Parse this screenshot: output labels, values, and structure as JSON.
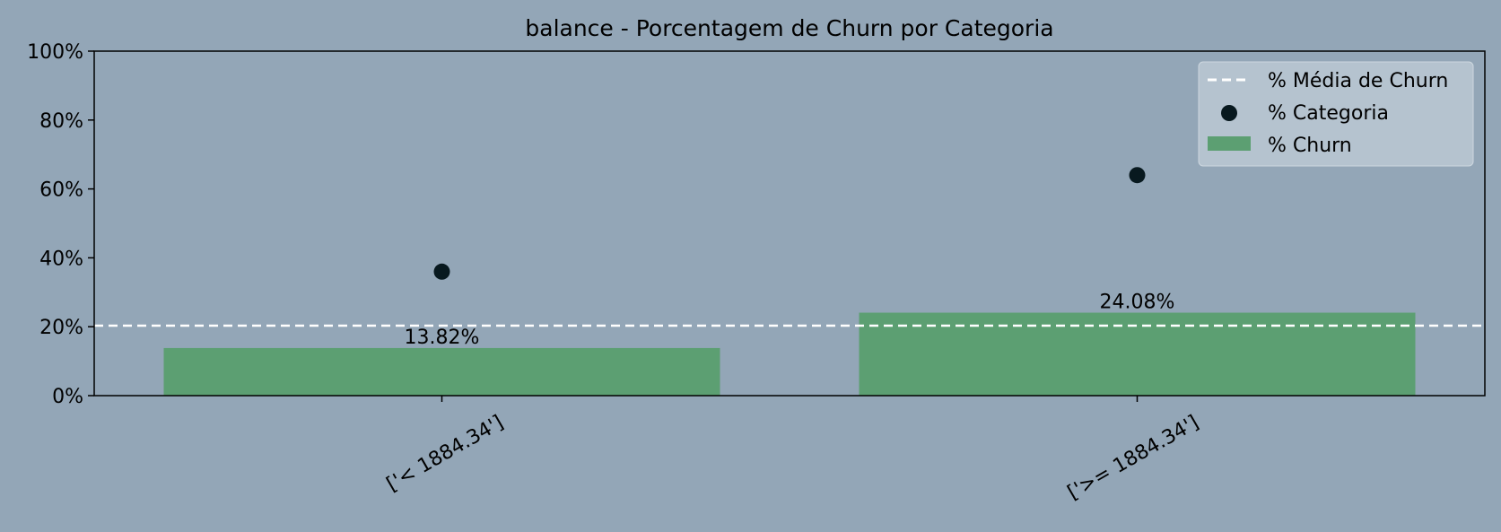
{
  "chart_data": {
    "type": "bar",
    "title": "balance - Porcentagem de Churn por Categoria",
    "categories": [
      "['< 1884.34']",
      "['>= 1884.34']"
    ],
    "series": [
      {
        "name": "% Churn",
        "values": [
          13.82,
          24.08
        ],
        "color": "#5c9f72"
      },
      {
        "name": "% Categoria",
        "values": [
          36.0,
          64.0
        ],
        "color": "#08191f"
      }
    ],
    "average_line": {
      "name": "% Média de Churn",
      "value": 20.3,
      "color": "#ffffff"
    },
    "data_labels": [
      "13.82%",
      "24.08%"
    ],
    "ylim": [
      0,
      100
    ],
    "yticks": [
      0,
      20,
      40,
      60,
      80,
      100
    ],
    "ytick_labels": [
      "0%",
      "20%",
      "40%",
      "60%",
      "80%",
      "100%"
    ],
    "xlabel": "",
    "ylabel": "",
    "grid": false,
    "legend_position": "top-right",
    "background_color": "#93a6b7"
  }
}
